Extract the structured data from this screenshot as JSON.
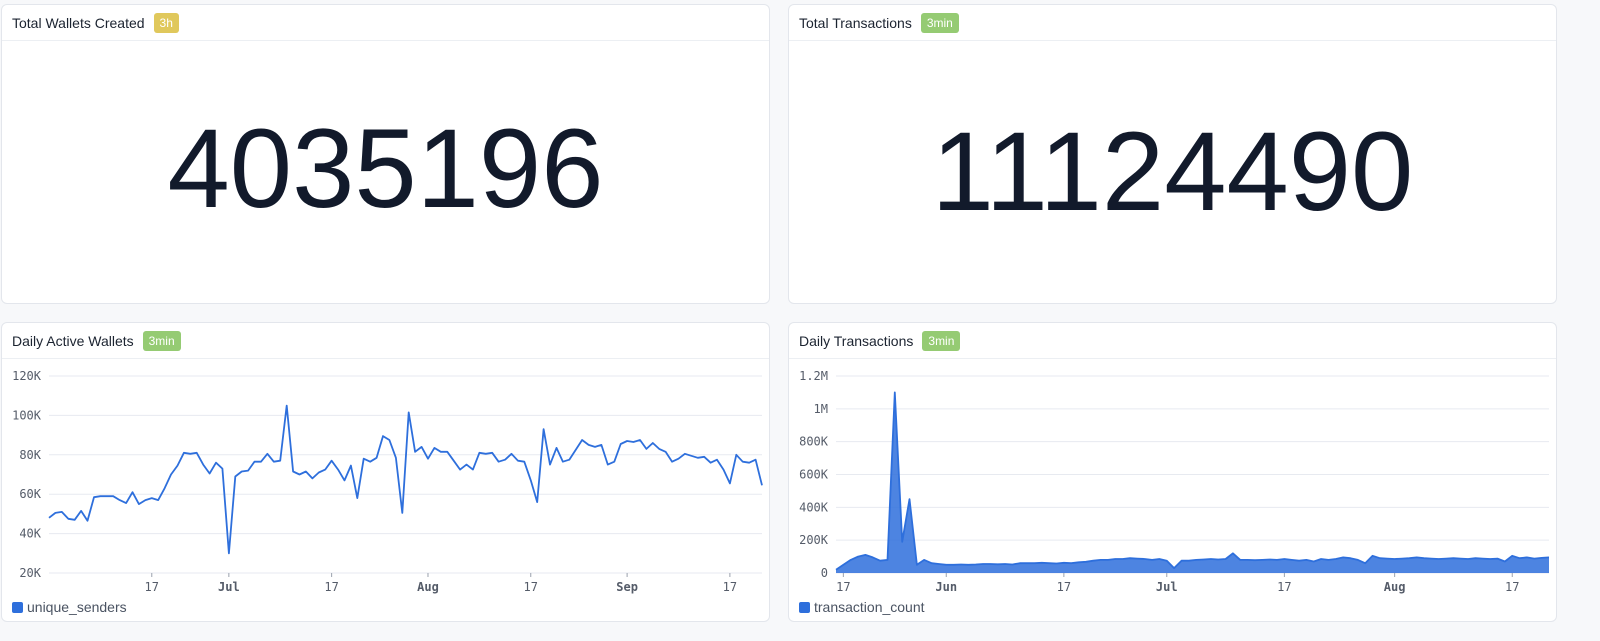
{
  "colors": {
    "badge_3h": "#e0c85c",
    "badge_3min": "#95cb73",
    "series": "#2e6fdc",
    "grid": "#e7eaf0",
    "tick": "#555c69"
  },
  "cards": {
    "wallets": {
      "title": "Total Wallets Created",
      "badge": "3h",
      "value": "4035196"
    },
    "transactions": {
      "title": "Total Transactions",
      "badge": "3min",
      "value": "11124490"
    },
    "daily_wallets": {
      "title": "Daily Active Wallets",
      "badge": "3min",
      "legend": "unique_senders"
    },
    "daily_tx": {
      "title": "Daily Transactions",
      "badge": "3min",
      "legend": "transaction_count"
    }
  },
  "chart_data": [
    {
      "type": "line",
      "series": [
        {
          "name": "unique_senders",
          "values": [
            48000,
            50500,
            51000,
            47500,
            47000,
            51500,
            46500,
            58500,
            59000,
            59000,
            59000,
            57000,
            55500,
            61000,
            55000,
            57000,
            58000,
            57000,
            63000,
            70000,
            74500,
            81000,
            80500,
            81000,
            75000,
            70500,
            76000,
            73000,
            30000,
            69000,
            71500,
            72000,
            76500,
            76500,
            80500,
            76500,
            77000,
            105000,
            71500,
            70000,
            71500,
            68000,
            71000,
            72500,
            77000,
            72500,
            67000,
            74500,
            58000,
            78000,
            76500,
            78500,
            89500,
            87500,
            78500,
            50500,
            101500,
            81500,
            84000,
            78000,
            83500,
            81500,
            81500,
            77000,
            72500,
            75000,
            72500,
            81000,
            80500,
            81000,
            76500,
            77500,
            80500,
            77000,
            76500,
            67000,
            56000,
            93000,
            75000,
            83500,
            76500,
            77500,
            82500,
            87500,
            85000,
            84000,
            85000,
            75000,
            76500,
            85500,
            87000,
            86500,
            87500,
            83000,
            86000,
            83000,
            81500,
            76500,
            78000,
            80500,
            79500,
            78500,
            79000,
            76000,
            77500,
            72500,
            65500,
            80000,
            76500,
            76000,
            77500,
            64500
          ]
        }
      ],
      "ylim": [
        20000,
        120000
      ],
      "yticks": [
        {
          "v": 120000,
          "label": "120K"
        },
        {
          "v": 100000,
          "label": "100K"
        },
        {
          "v": 80000,
          "label": "80K"
        },
        {
          "v": 60000,
          "label": "60K"
        },
        {
          "v": 40000,
          "label": "40K"
        },
        {
          "v": 20000,
          "label": "20K"
        }
      ],
      "xticks": [
        {
          "i": 16,
          "label": "17",
          "bold": false
        },
        {
          "i": 28,
          "label": "Jul",
          "bold": true
        },
        {
          "i": 44,
          "label": "17",
          "bold": false
        },
        {
          "i": 59,
          "label": "Aug",
          "bold": true
        },
        {
          "i": 75,
          "label": "17",
          "bold": false
        },
        {
          "i": 90,
          "label": "Sep",
          "bold": true
        },
        {
          "i": 106,
          "label": "17",
          "bold": false
        }
      ],
      "grid": true,
      "legend_position": "bottom-left"
    },
    {
      "type": "area",
      "series": [
        {
          "name": "transaction_count",
          "values": [
            20000,
            50000,
            80000,
            100000,
            110000,
            95000,
            75000,
            80000,
            1100000,
            190000,
            450000,
            50000,
            80000,
            60000,
            55000,
            50000,
            50000,
            52000,
            50000,
            52000,
            55000,
            55000,
            53000,
            55000,
            52000,
            60000,
            60000,
            60000,
            62000,
            60000,
            58000,
            62000,
            60000,
            65000,
            68000,
            75000,
            80000,
            80000,
            85000,
            85000,
            90000,
            88000,
            85000,
            80000,
            85000,
            75000,
            30000,
            75000,
            75000,
            80000,
            82000,
            85000,
            82000,
            85000,
            120000,
            80000,
            80000,
            78000,
            80000,
            82000,
            80000,
            85000,
            80000,
            75000,
            80000,
            70000,
            85000,
            80000,
            85000,
            95000,
            90000,
            80000,
            60000,
            105000,
            90000,
            88000,
            85000,
            88000,
            90000,
            95000,
            90000,
            88000,
            85000,
            88000,
            90000,
            88000,
            85000,
            90000,
            88000,
            85000,
            88000,
            70000,
            105000,
            90000,
            95000,
            88000,
            92000,
            95000
          ]
        }
      ],
      "ylim": [
        0,
        1200000
      ],
      "yticks": [
        {
          "v": 1200000,
          "label": "1.2M"
        },
        {
          "v": 1000000,
          "label": "1M"
        },
        {
          "v": 800000,
          "label": "800K"
        },
        {
          "v": 600000,
          "label": "600K"
        },
        {
          "v": 400000,
          "label": "400K"
        },
        {
          "v": 200000,
          "label": "200K"
        },
        {
          "v": 0,
          "label": "0"
        }
      ],
      "xticks": [
        {
          "i": 1,
          "label": "17",
          "bold": false
        },
        {
          "i": 15,
          "label": "Jun",
          "bold": true
        },
        {
          "i": 31,
          "label": "17",
          "bold": false
        },
        {
          "i": 45,
          "label": "Jul",
          "bold": true
        },
        {
          "i": 61,
          "label": "17",
          "bold": false
        },
        {
          "i": 76,
          "label": "Aug",
          "bold": true
        },
        {
          "i": 92,
          "label": "17",
          "bold": false
        }
      ],
      "grid": true,
      "legend_position": "bottom-left"
    }
  ]
}
